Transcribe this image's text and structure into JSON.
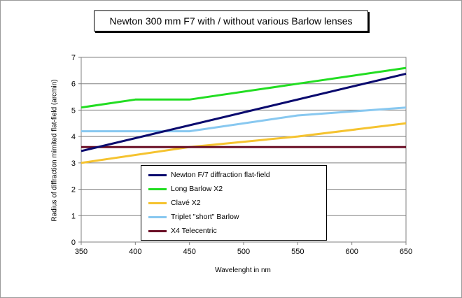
{
  "chart_data": {
    "type": "line",
    "title": "Newton 300 mm F7 with / without various Barlow lenses",
    "xlabel": "Wavelenght in nm",
    "ylabel": "Radius of diffraction mimited flat-field (arcmin)",
    "xlim": [
      350,
      650
    ],
    "ylim": [
      0,
      7
    ],
    "xticks": [
      "350",
      "400",
      "450",
      "500",
      "550",
      "600",
      "650"
    ],
    "yticks": [
      "0",
      "1",
      "2",
      "3",
      "4",
      "5",
      "6",
      "7"
    ],
    "grid": "horizontal",
    "legend_position": "bottom-center inside plot",
    "series": [
      {
        "name": "Newton F/7 diffraction flat-field",
        "color": "#0a0a6e",
        "x": [
          350,
          650
        ],
        "y": [
          3.45,
          6.38
        ]
      },
      {
        "name": "Long Barlow X2",
        "color": "#22dd22",
        "x": [
          350,
          400,
          450,
          550,
          650
        ],
        "y": [
          5.1,
          5.4,
          5.4,
          6.0,
          6.6
        ]
      },
      {
        "name": "Clavé X2",
        "color": "#f5c330",
        "x": [
          350,
          450,
          550,
          650
        ],
        "y": [
          3.0,
          3.6,
          4.0,
          4.5
        ]
      },
      {
        "name": "Triplet \"short\" Barlow",
        "color": "#88c8f0",
        "x": [
          350,
          450,
          550,
          650
        ],
        "y": [
          4.2,
          4.2,
          4.8,
          5.1
        ]
      },
      {
        "name": "X4 Telecentric",
        "color": "#6a0f26",
        "x": [
          350,
          650
        ],
        "y": [
          3.6,
          3.6
        ]
      }
    ]
  }
}
